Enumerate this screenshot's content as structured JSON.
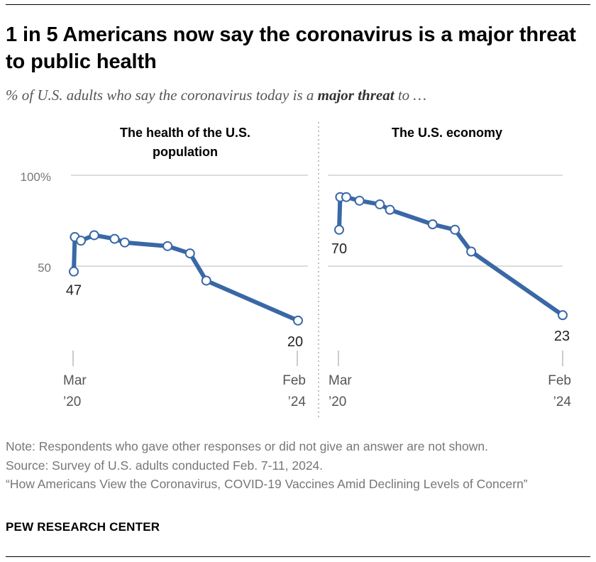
{
  "header": {
    "title": "1 in 5 Americans now say the coronavirus is a major threat to public health",
    "subtitle_pre": "% of U.S. adults who say the coronavirus today is a ",
    "subtitle_bold": "major threat",
    "subtitle_post": " to …"
  },
  "chart_data": [
    {
      "type": "line",
      "title": "The health of the U.S. population",
      "y_tick_labels": [
        "100%",
        "50"
      ],
      "ylim": [
        0,
        100
      ],
      "x_tick_labels": [
        {
          "month": "Mar",
          "year": "’20"
        },
        {
          "month": "Feb",
          "year": "’24"
        }
      ],
      "values": [
        47,
        66,
        64,
        67,
        65,
        63,
        61,
        57,
        42,
        20
      ],
      "point_index": [
        0,
        0.1,
        0.7,
        2,
        4,
        5,
        9.2,
        11.4,
        13,
        22
      ],
      "annotations": [
        {
          "point": 0,
          "label": "47"
        },
        {
          "point": 9,
          "label": "20"
        }
      ],
      "color": "#3a68a6"
    },
    {
      "type": "line",
      "title": "The U.S. economy",
      "ylim": [
        0,
        100
      ],
      "x_tick_labels": [
        {
          "month": "Mar",
          "year": "’20"
        },
        {
          "month": "Feb",
          "year": "’24"
        }
      ],
      "values": [
        70,
        88,
        88,
        86,
        84,
        81,
        73,
        70,
        58,
        23
      ],
      "point_index": [
        0,
        0.1,
        0.7,
        2,
        4,
        5,
        9.2,
        11.4,
        13,
        22
      ],
      "annotations": [
        {
          "point": 0,
          "label": "70"
        },
        {
          "point": 9,
          "label": "23"
        }
      ],
      "color": "#3a68a6"
    }
  ],
  "footer": {
    "note": "Note: Respondents who gave other responses or did not give an answer are not shown.",
    "source": "Source: Survey of U.S. adults conducted Feb. 7-11, 2024.",
    "report": "“How Americans View the Coronavirus, COVID-19 Vaccines Amid Declining Levels of Concern”",
    "brand": "PEW RESEARCH CENTER"
  }
}
